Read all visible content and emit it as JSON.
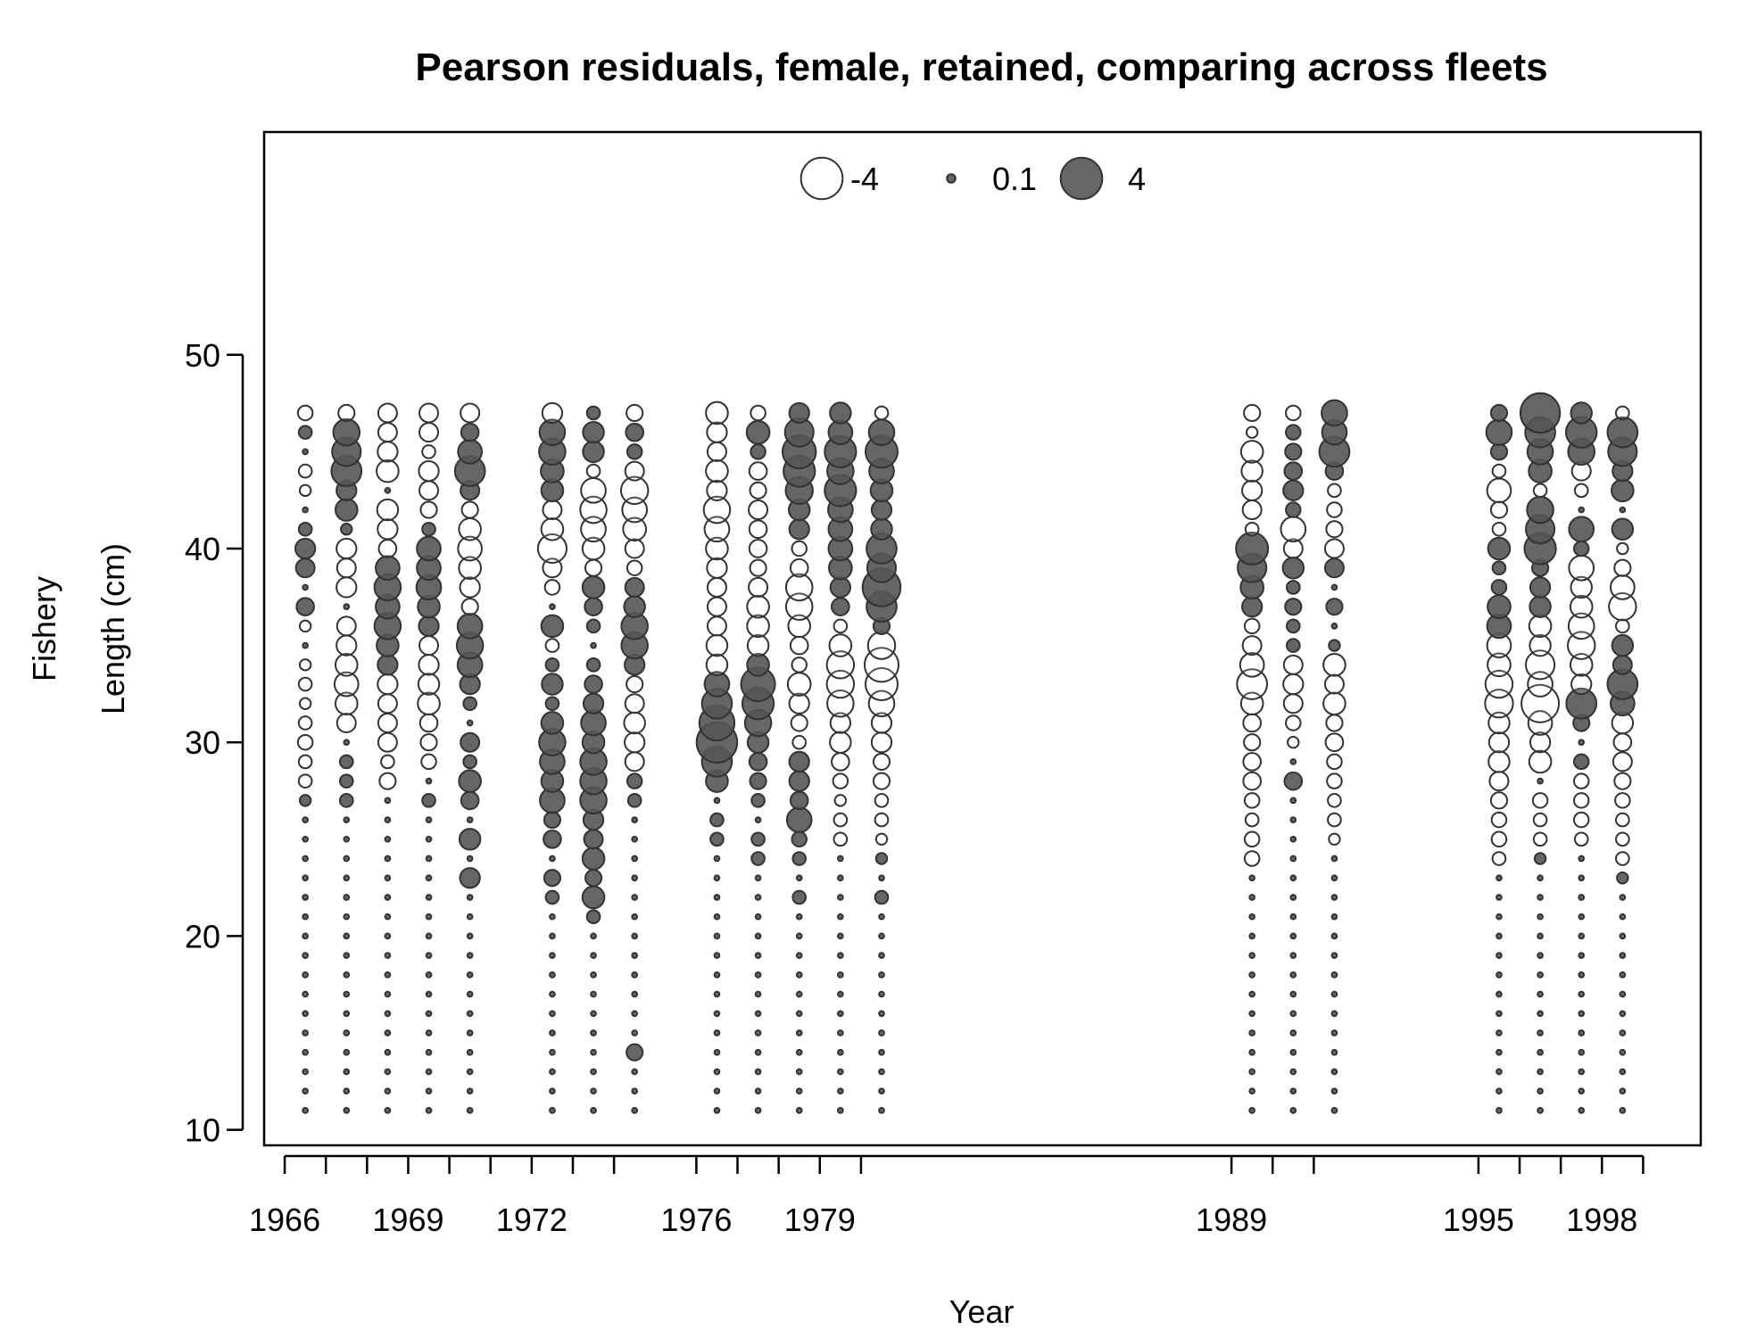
{
  "chart_data": {
    "type": "bubble",
    "title": "Pearson residuals, female, retained, comparing across fleets",
    "xlabel": "Year",
    "ylabel_line1": "Fishery",
    "ylabel_line2": "Length (cm)",
    "xlim": [
      1965.5,
      2000.4
    ],
    "ylim": [
      9.2,
      61.5
    ],
    "y_ticks": [
      10,
      20,
      30,
      40,
      50
    ],
    "x_tick_labels": [
      1966,
      1969,
      1972,
      1976,
      1979,
      1989,
      1995,
      1998
    ],
    "x_tick_marks": [
      1966,
      1967,
      1968,
      1969,
      1970,
      1971,
      1972,
      1973,
      1974,
      1976,
      1977,
      1978,
      1979,
      1980,
      1989,
      1990,
      1991,
      1995,
      1996,
      1997,
      1998,
      1999
    ],
    "legend": {
      "position": "top-center",
      "entries": [
        {
          "value": -4,
          "label": "-4"
        },
        {
          "value": 0.1,
          "label": "0.1"
        },
        {
          "value": 4,
          "label": "4"
        }
      ]
    },
    "colors": {
      "positive_fill": "#555555",
      "negative_fill": "#ffffff",
      "stroke": "#333333"
    },
    "length_bins": [
      11,
      47
    ],
    "series": [
      {
        "year": 1966.5,
        "residuals": {
          "47": -0.4,
          "46": 0.3,
          "44": -0.3,
          "43": -0.2,
          "41": 0.3,
          "40": 0.8,
          "39": 0.7,
          "37": 0.6,
          "36": -0.2,
          "34": -0.2,
          "33": -0.3,
          "32": -0.2,
          "31": -0.3,
          "30": -0.4,
          "29": -0.3,
          "28": -0.3,
          "27": 0.2
        }
      },
      {
        "year": 1967.5,
        "residuals": {
          "47": -0.5,
          "46": 1.5,
          "45": 1.8,
          "44": 2.0,
          "43": 0.8,
          "42": 1.0,
          "41": 0.2,
          "40": -0.8,
          "39": -0.7,
          "38": -0.8,
          "36": -0.7,
          "35": -0.8,
          "34": -1.0,
          "33": -1.2,
          "32": -1.0,
          "31": -0.7,
          "29": 0.3,
          "28": 0.3,
          "27": 0.3
        }
      },
      {
        "year": 1968.5,
        "residuals": {
          "47": -0.7,
          "46": -0.7,
          "45": -0.8,
          "44": -1.0,
          "42": -0.9,
          "41": -0.8,
          "40": -0.6,
          "39": 1.2,
          "38": 1.5,
          "37": 1.2,
          "36": 1.5,
          "35": 1.0,
          "34": 0.8,
          "33": -0.8,
          "32": -0.7,
          "31": -0.7,
          "30": -0.7,
          "29": -0.3,
          "28": -0.5
        }
      },
      {
        "year": 1969.5,
        "residuals": {
          "47": -0.7,
          "46": -0.7,
          "45": -0.3,
          "44": -0.8,
          "43": -0.7,
          "42": -0.5,
          "41": 0.3,
          "40": 1.2,
          "39": 1.2,
          "38": 1.3,
          "37": 1.0,
          "36": 0.8,
          "35": -0.7,
          "34": -0.8,
          "33": -0.9,
          "32": -1.0,
          "31": -0.6,
          "30": -0.5,
          "29": -0.4,
          "27": 0.3
        }
      },
      {
        "year": 1970.5,
        "residuals": {
          "47": -0.7,
          "46": 0.6,
          "45": 1.2,
          "44": 2.0,
          "43": 0.7,
          "42": -0.5,
          "41": -1.0,
          "40": -1.2,
          "39": -1.0,
          "38": -0.8,
          "37": -0.5,
          "36": 1.3,
          "35": 1.5,
          "34": 1.3,
          "33": 0.8,
          "32": 0.3,
          "30": 0.7,
          "29": 0.3,
          "28": 1.0,
          "27": 0.6,
          "25": 0.9,
          "23": 0.8
        }
      },
      {
        "year": 1972.5,
        "residuals": {
          "47": -0.8,
          "46": 1.4,
          "45": 1.5,
          "44": 1.1,
          "43": 1.0,
          "42": -0.7,
          "41": -1.0,
          "40": -1.8,
          "39": -0.7,
          "38": -0.4,
          "36": 1.0,
          "35": -0.3,
          "34": 0.3,
          "33": 0.9,
          "32": 0.3,
          "31": 1.0,
          "30": 1.5,
          "29": 1.3,
          "28": 1.0,
          "27": 1.3,
          "26": 0.5,
          "25": 0.6,
          "23": 0.5,
          "22": 0.3
        }
      },
      {
        "year": 1973.5,
        "residuals": {
          "47": 0.3,
          "46": 0.9,
          "45": 0.9,
          "44": -0.3,
          "43": -1.3,
          "42": -1.5,
          "41": -1.3,
          "40": -1.0,
          "39": -0.5,
          "38": 1.0,
          "37": 0.6,
          "36": 0.3,
          "34": 0.3,
          "33": 0.6,
          "32": 0.8,
          "31": 1.3,
          "30": 1.0,
          "29": 1.5,
          "28": 1.5,
          "27": 1.5,
          "26": 0.8,
          "25": 0.7,
          "24": 1.0,
          "23": 0.5,
          "22": 1.0,
          "21": 0.3
        }
      },
      {
        "year": 1974.5,
        "residuals": {
          "47": -0.5,
          "46": 0.6,
          "45": 0.4,
          "44": -0.7,
          "43": -1.6,
          "42": -1.3,
          "41": -1.1,
          "40": -0.7,
          "39": -0.4,
          "38": 0.7,
          "37": 0.9,
          "36": 1.5,
          "35": 1.5,
          "34": 0.8,
          "33": -0.5,
          "32": -0.7,
          "31": -0.9,
          "30": -0.8,
          "29": -0.7,
          "28": 0.4,
          "27": 0.3,
          "14": 0.5
        }
      },
      {
        "year": 1976.5,
        "residuals": {
          "47": -1.0,
          "46": -0.8,
          "45": -0.7,
          "44": -1.0,
          "43": -0.8,
          "42": -1.5,
          "41": -1.3,
          "40": -1.0,
          "39": -0.8,
          "38": -0.7,
          "37": -0.7,
          "36": -0.7,
          "35": -0.9,
          "34": -0.9,
          "33": 1.3,
          "32": 2.0,
          "31": 2.8,
          "30": 3.8,
          "29": 2.0,
          "28": 1.0,
          "26": 0.3,
          "25": 0.3
        }
      },
      {
        "year": 1977.5,
        "residuals": {
          "47": -0.4,
          "46": 1.1,
          "45": 0.4,
          "44": -0.6,
          "43": -0.5,
          "42": -0.7,
          "41": -0.6,
          "40": -0.6,
          "39": -0.5,
          "38": -0.7,
          "37": -1.0,
          "36": -1.0,
          "35": -0.9,
          "34": 1.0,
          "33": 2.6,
          "32": 2.2,
          "31": 1.5,
          "30": 0.9,
          "29": 0.6,
          "28": 0.5,
          "27": 0.3,
          "25": 0.3,
          "24": 0.3
        }
      },
      {
        "year": 1978.5,
        "residuals": {
          "47": 0.8,
          "46": 1.8,
          "45": 2.5,
          "44": 2.2,
          "43": 1.6,
          "42": 0.9,
          "41": 0.8,
          "40": -0.4,
          "39": -0.6,
          "38": -1.5,
          "37": -1.5,
          "36": -1.0,
          "35": -0.6,
          "34": -0.4,
          "33": -1.1,
          "32": -0.8,
          "31": -0.5,
          "30": -0.3,
          "29": 0.8,
          "28": 0.8,
          "27": 0.6,
          "26": 1.3,
          "25": 0.4,
          "24": 0.3,
          "22": 0.3
        }
      },
      {
        "year": 1979.5,
        "residuals": {
          "47": 0.9,
          "46": 1.2,
          "45": 2.2,
          "44": 1.5,
          "43": 2.2,
          "42": 1.3,
          "41": 1.2,
          "40": 1.2,
          "39": 1.1,
          "38": 0.8,
          "37": 0.6,
          "36": -0.3,
          "35": -1.0,
          "34": -1.6,
          "33": -1.6,
          "32": -1.5,
          "31": -0.8,
          "30": -0.9,
          "29": -0.6,
          "28": -0.4,
          "27": -0.2,
          "26": -0.3,
          "25": -0.3
        }
      },
      {
        "year": 1980.5,
        "residuals": {
          "47": -0.3,
          "46": 1.4,
          "45": 2.3,
          "44": 1.3,
          "43": 1.0,
          "42": 0.8,
          "41": 0.9,
          "40": 2.0,
          "39": 1.8,
          "38": 3.3,
          "37": 2.0,
          "36": 0.5,
          "35": -1.6,
          "34": -2.6,
          "33": -2.3,
          "32": -1.4,
          "31": -0.8,
          "30": -0.8,
          "29": -0.5,
          "28": -0.5,
          "27": -0.3,
          "26": -0.3,
          "25": -0.2,
          "24": 0.2,
          "22": 0.3
        }
      },
      {
        "year": 1989.5,
        "residuals": {
          "47": -0.5,
          "46": -0.2,
          "45": -1.0,
          "44": -0.9,
          "43": -0.8,
          "42": -0.7,
          "41": -0.3,
          "40": 2.3,
          "39": 1.8,
          "38": 1.1,
          "37": 0.8,
          "36": -0.4,
          "35": -0.7,
          "34": -1.2,
          "33": -2.0,
          "32": -1.0,
          "31": -0.6,
          "30": -0.5,
          "29": -0.6,
          "28": -0.6,
          "27": -0.4,
          "26": -0.3,
          "25": -0.4,
          "24": -0.4
        }
      },
      {
        "year": 1990.5,
        "residuals": {
          "47": -0.4,
          "46": 0.4,
          "45": 0.5,
          "44": 0.6,
          "43": 0.8,
          "42": 0.4,
          "41": -1.3,
          "40": -0.7,
          "39": 0.9,
          "38": 0.3,
          "37": 0.5,
          "36": 0.3,
          "35": 0.3,
          "34": -0.7,
          "33": -0.8,
          "32": -0.7,
          "31": -0.4,
          "30": -0.2,
          "28": 0.6
        }
      },
      {
        "year": 1991.5,
        "residuals": {
          "47": 1.4,
          "46": 1.3,
          "45": 2.0,
          "44": 0.6,
          "43": -0.3,
          "42": -0.4,
          "41": -0.5,
          "40": -0.7,
          "39": 0.7,
          "37": 0.5,
          "35": 0.2,
          "34": -1.0,
          "33": -0.7,
          "32": -1.0,
          "31": -0.5,
          "30": -0.6,
          "29": -0.4,
          "28": -0.4,
          "27": -0.3,
          "26": -0.3,
          "25": -0.2
        }
      },
      {
        "year": 1995.5,
        "residuals": {
          "47": 0.5,
          "46": 1.4,
          "45": 0.5,
          "44": -0.3,
          "43": -1.2,
          "42": -0.5,
          "41": -0.3,
          "40": 1.0,
          "39": 0.3,
          "38": 0.4,
          "37": 1.1,
          "36": 1.2,
          "35": -1.2,
          "34": -1.1,
          "33": -1.6,
          "32": -1.7,
          "31": -0.9,
          "30": -0.8,
          "29": -0.9,
          "28": -0.7,
          "27": -0.5,
          "26": -0.4,
          "25": -0.4,
          "24": -0.3
        }
      },
      {
        "year": 1996.5,
        "residuals": {
          "47": 3.6,
          "46": 2.0,
          "45": 1.4,
          "44": 1.1,
          "43": -0.3,
          "42": 1.5,
          "41": 1.8,
          "40": 2.2,
          "39": 0.5,
          "38": 0.8,
          "37": 0.9,
          "36": -1.0,
          "35": -0.9,
          "34": -1.8,
          "33": -1.3,
          "32": -3.2,
          "31": -1.2,
          "30": -0.8,
          "29": -1.0,
          "27": -0.4,
          "26": -0.3,
          "25": -0.3,
          "24": 0.2
        }
      },
      {
        "year": 1997.5,
        "residuals": {
          "47": 0.9,
          "46": 2.1,
          "45": 1.5,
          "44": -0.7,
          "43": -0.3,
          "41": 1.3,
          "40": 0.4,
          "39": -1.3,
          "38": -0.9,
          "37": -1.0,
          "36": -1.4,
          "35": -1.6,
          "34": -1.0,
          "33": -0.8,
          "32": 2.0,
          "31": 0.5,
          "29": 0.4,
          "28": -0.4,
          "27": -0.4,
          "26": -0.4,
          "25": -0.3
        }
      },
      {
        "year": 1998.5,
        "residuals": {
          "47": -0.3,
          "46": 2.0,
          "45": 1.8,
          "44": 0.8,
          "43": 1.0,
          "41": 0.9,
          "40": -0.2,
          "39": -0.5,
          "38": -1.2,
          "37": -1.6,
          "36": -0.3,
          "35": 0.9,
          "34": 0.7,
          "33": 2.0,
          "32": 1.2,
          "31": -0.9,
          "30": -0.6,
          "29": -0.7,
          "28": -0.5,
          "27": -0.4,
          "26": -0.3,
          "25": -0.3,
          "24": -0.3,
          "23": 0.2
        }
      }
    ]
  }
}
